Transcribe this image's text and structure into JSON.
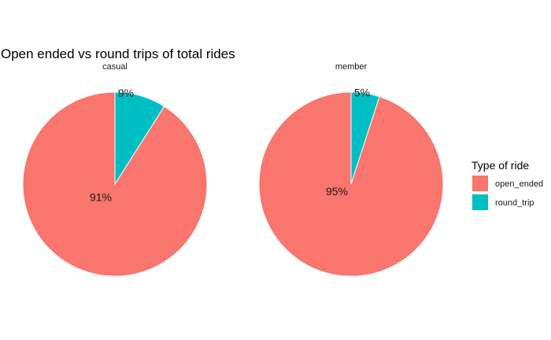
{
  "chart_data": {
    "type": "pie",
    "title": "Open ended vs round trips of total rides",
    "facets": [
      {
        "name": "casual",
        "slices": [
          {
            "category": "round_trip",
            "value": 9,
            "label": "9%"
          },
          {
            "category": "open_ended",
            "value": 91,
            "label": "91%"
          }
        ]
      },
      {
        "name": "member",
        "slices": [
          {
            "category": "round_trip",
            "value": 5,
            "label": "5%"
          },
          {
            "category": "open_ended",
            "value": 95,
            "label": "95%"
          }
        ]
      }
    ],
    "legend": {
      "title": "Type of ride",
      "placement": "right",
      "entries": [
        {
          "label": "open_ended",
          "color": "#F8766D"
        },
        {
          "label": "round_trip",
          "color": "#00BFC4"
        }
      ]
    },
    "colors": {
      "open_ended": "#F8766D",
      "round_trip": "#00BFC4"
    }
  }
}
